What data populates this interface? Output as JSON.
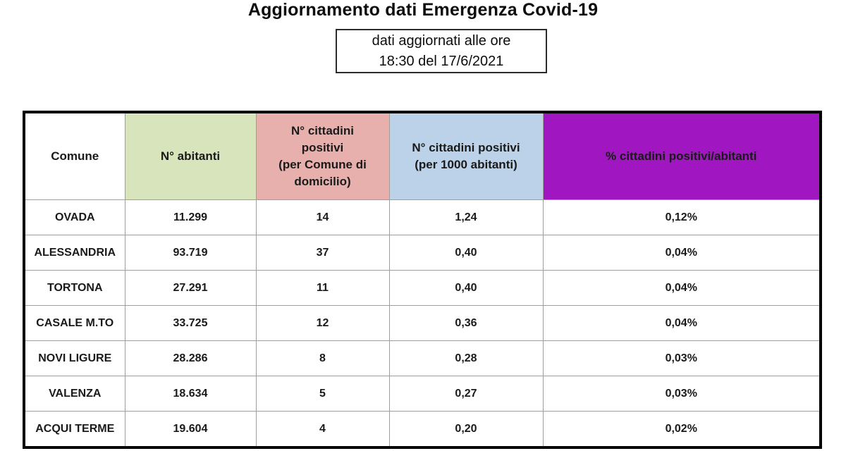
{
  "page": {
    "title": "Aggiornamento dati Emergenza Covid-19"
  },
  "update_box": {
    "line1": "dati aggiornati alle ore",
    "line2": "18:30 del 17/6/2021"
  },
  "table": {
    "headers": [
      "Comune",
      "N° abitanti",
      "N° cittadini\npositivi\n(per Comune di\ndomicilio)",
      "N° cittadini positivi\n(per 1000 abitanti)",
      "% cittadini positivi/abitanti"
    ],
    "header_colors": {
      "comune": "#ffffff",
      "abitanti": "#d7e4bc",
      "positivi": "#e7b0ad",
      "per1000": "#bcd2e8",
      "percent": "#a016c0"
    },
    "rows": [
      {
        "comune": "OVADA",
        "abitanti": "11.299",
        "positivi": "14",
        "per1000": "1,24",
        "percent": "0,12%"
      },
      {
        "comune": "ALESSANDRIA",
        "abitanti": "93.719",
        "positivi": "37",
        "per1000": "0,40",
        "percent": "0,04%"
      },
      {
        "comune": "TORTONA",
        "abitanti": "27.291",
        "positivi": "11",
        "per1000": "0,40",
        "percent": "0,04%"
      },
      {
        "comune": "CASALE M.TO",
        "abitanti": "33.725",
        "positivi": "12",
        "per1000": "0,36",
        "percent": "0,04%"
      },
      {
        "comune": "NOVI LIGURE",
        "abitanti": "28.286",
        "positivi": "8",
        "per1000": "0,28",
        "percent": "0,03%"
      },
      {
        "comune": "VALENZA",
        "abitanti": "18.634",
        "positivi": "5",
        "per1000": "0,27",
        "percent": "0,03%"
      },
      {
        "comune": "ACQUI TERME",
        "abitanti": "19.604",
        "positivi": "4",
        "per1000": "0,20",
        "percent": "0,02%"
      }
    ]
  }
}
